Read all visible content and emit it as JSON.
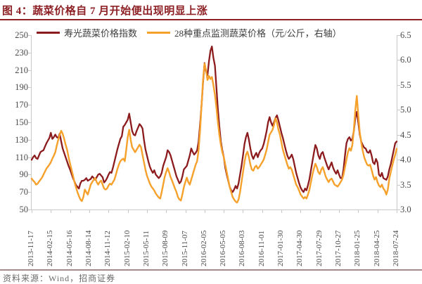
{
  "header": {
    "title": "图 4：蔬菜价格自 7 月开始便出现明显上涨"
  },
  "footer": {
    "source": "资料来源：Wind，招商证券"
  },
  "colors": {
    "title_red": "#8D2024",
    "divider_top": "#8D2024",
    "divider_bottom": "#A98A8A",
    "axis_gray": "#c8c8c8",
    "series_red": "#8C1B1E",
    "series_orange": "#F5A12B"
  },
  "legend": {
    "items": [
      {
        "label": "寿光蔬菜价格指数",
        "color": "#8C1B1E"
      },
      {
        "label": "28种重点监测蔬菜价格（元/公斤，右轴）",
        "color": "#F5A12B"
      }
    ]
  },
  "chart_data": {
    "type": "line",
    "title": "图 4：蔬菜价格自 7 月开始便出现明显上涨",
    "grid": false,
    "legend_position": "top",
    "x_labels": [
      "2013-11-17",
      "2014-02-15",
      "2014-05-16",
      "2014-08-14",
      "2014-11-12",
      "2015-02-10",
      "2015-05-11",
      "2015-08-09",
      "2015-11-07",
      "2016-02-05",
      "2016-05-05",
      "2016-08-03",
      "2016-11-01",
      "2017-01-30",
      "2017-04-30",
      "2017-07-29",
      "2017-10-27",
      "2018-01-25",
      "2018-04-25",
      "2018-07-24"
    ],
    "left_axis": {
      "min": 50,
      "max": 250,
      "ticks": [
        "250",
        "230",
        "210",
        "190",
        "170",
        "150",
        "130",
        "110",
        "90",
        "70",
        "50"
      ]
    },
    "right_axis": {
      "min": 3.0,
      "max": 6.5,
      "ticks": [
        "6.5",
        "6.0",
        "5.5",
        "5.0",
        "4.5",
        "4.0",
        "3.5",
        "3.0"
      ]
    },
    "series": [
      {
        "name": "寿光蔬菜价格指数",
        "axis": "left",
        "color": "#8C1B1E",
        "values": [
          107,
          110,
          112,
          109,
          108,
          112,
          116,
          117,
          118,
          122,
          126,
          129,
          132,
          138,
          131,
          133,
          136,
          133,
          132,
          137,
          128,
          120,
          115,
          110,
          105,
          100,
          96,
          91,
          86,
          82,
          78,
          76,
          74,
          80,
          83,
          83,
          84,
          86,
          83,
          84,
          85,
          88,
          86,
          84,
          87,
          90,
          91,
          89,
          87,
          81,
          83,
          86,
          90,
          93,
          92,
          98,
          105,
          112,
          119,
          125,
          131,
          134,
          145,
          147,
          150,
          153,
          160,
          150,
          140,
          136,
          135,
          140,
          144,
          148,
          146,
          143,
          130,
          119,
          112,
          105,
          99,
          95,
          92,
          95,
          90,
          88,
          86,
          88,
          92,
          100,
          105,
          110,
          118,
          116,
          112,
          106,
          100,
          94,
          88,
          84,
          80,
          82,
          88,
          96,
          98,
          100,
          106,
          112,
          120,
          116,
          113,
          115,
          118,
          128,
          148,
          170,
          196,
          218,
          208,
          204,
          220,
          232,
          237,
          224,
          215,
          190,
          165,
          145,
          128,
          118,
          110,
          98,
          90,
          83,
          76,
          72,
          70,
          73,
          77,
          74,
          80,
          90,
          100,
          112,
          125,
          133,
          138,
          130,
          120,
          112,
          108,
          112,
          115,
          110,
          115,
          118,
          120,
          125,
          132,
          140,
          150,
          156,
          150,
          146,
          150,
          155,
          158,
          152,
          145,
          138,
          132,
          125,
          118,
          112,
          108,
          110,
          113,
          108,
          100,
          92,
          86,
          80,
          75,
          72,
          70,
          74,
          72,
          78,
          85,
          95,
          105,
          115,
          124,
          120,
          112,
          108,
          114,
          116,
          110,
          105,
          100,
          96,
          100,
          104,
          98,
          94,
          91,
          95,
          90,
          86,
          86,
          96,
          112,
          126,
          131,
          133,
          129,
          131,
          140,
          155,
          162,
          150,
          136,
          128,
          124,
          121,
          120,
          116,
          115,
          118,
          112,
          104,
          102,
          108,
          104,
          90,
          88,
          92,
          86,
          85,
          84,
          88,
          96,
          102,
          110,
          118,
          126,
          128
        ]
      },
      {
        "name": "28种重点监测蔬菜价格（元/公斤，右轴）",
        "axis": "right",
        "color": "#F5A12B",
        "values": [
          3.62,
          3.58,
          3.55,
          3.5,
          3.52,
          3.56,
          3.6,
          3.64,
          3.7,
          3.76,
          3.82,
          3.86,
          3.9,
          3.95,
          4.02,
          4.08,
          4.15,
          4.28,
          4.4,
          4.5,
          4.58,
          4.52,
          4.42,
          4.3,
          4.2,
          4.05,
          3.92,
          3.8,
          3.68,
          3.55,
          3.45,
          3.35,
          3.27,
          3.2,
          3.17,
          3.25,
          3.4,
          3.35,
          3.3,
          3.4,
          3.5,
          3.55,
          3.6,
          3.63,
          3.55,
          3.5,
          3.55,
          3.58,
          3.5,
          3.42,
          3.4,
          3.42,
          3.48,
          3.52,
          3.5,
          3.55,
          3.6,
          3.7,
          3.81,
          3.9,
          3.97,
          4.0,
          4.02,
          3.97,
          4.2,
          4.45,
          4.6,
          4.4,
          4.25,
          4.2,
          4.15,
          4.2,
          4.25,
          4.3,
          4.25,
          4.1,
          3.95,
          3.8,
          3.68,
          3.6,
          3.52,
          3.46,
          3.42,
          3.38,
          3.32,
          3.28,
          3.24,
          3.22,
          3.35,
          3.5,
          3.65,
          3.75,
          3.83,
          3.75,
          3.65,
          3.58,
          3.5,
          3.42,
          3.35,
          3.25,
          3.2,
          3.18,
          3.3,
          3.45,
          3.55,
          3.64,
          3.55,
          3.5,
          3.6,
          3.7,
          3.8,
          3.9,
          3.97,
          4.2,
          4.6,
          5.1,
          5.6,
          5.93,
          5.8,
          5.6,
          5.68,
          5.62,
          5.66,
          5.5,
          5.3,
          5.05,
          4.75,
          4.5,
          4.3,
          4.15,
          4.05,
          3.9,
          3.75,
          3.6,
          3.45,
          3.35,
          3.25,
          3.2,
          3.16,
          3.14,
          3.2,
          3.35,
          3.55,
          3.75,
          3.95,
          4.1,
          4.16,
          4.05,
          3.9,
          3.8,
          3.78,
          3.85,
          3.88,
          3.82,
          3.85,
          3.9,
          3.95,
          4.0,
          4.1,
          4.2,
          4.35,
          4.5,
          4.55,
          4.6,
          4.7,
          4.83,
          4.75,
          4.6,
          4.5,
          4.35,
          4.2,
          4.1,
          4.0,
          3.9,
          3.82,
          3.85,
          3.8,
          3.7,
          3.6,
          3.5,
          3.45,
          3.38,
          3.3,
          3.26,
          3.22,
          3.25,
          3.22,
          3.3,
          3.4,
          3.55,
          3.7,
          3.82,
          3.92,
          3.85,
          3.75,
          3.71,
          3.8,
          3.85,
          3.76,
          3.66,
          3.6,
          3.55,
          3.6,
          3.62,
          3.56,
          3.5,
          3.48,
          3.46,
          3.5,
          3.55,
          3.6,
          3.7,
          3.85,
          4.0,
          4.15,
          4.23,
          4.18,
          4.3,
          4.6,
          5.0,
          5.28,
          4.9,
          4.55,
          4.35,
          4.18,
          4.05,
          3.97,
          3.9,
          3.88,
          3.9,
          3.8,
          3.68,
          3.6,
          3.65,
          3.55,
          3.48,
          3.45,
          3.5,
          3.42,
          3.38,
          3.3,
          3.4,
          3.62,
          3.75,
          3.88,
          4.0,
          4.1,
          4.22
        ]
      }
    ]
  }
}
